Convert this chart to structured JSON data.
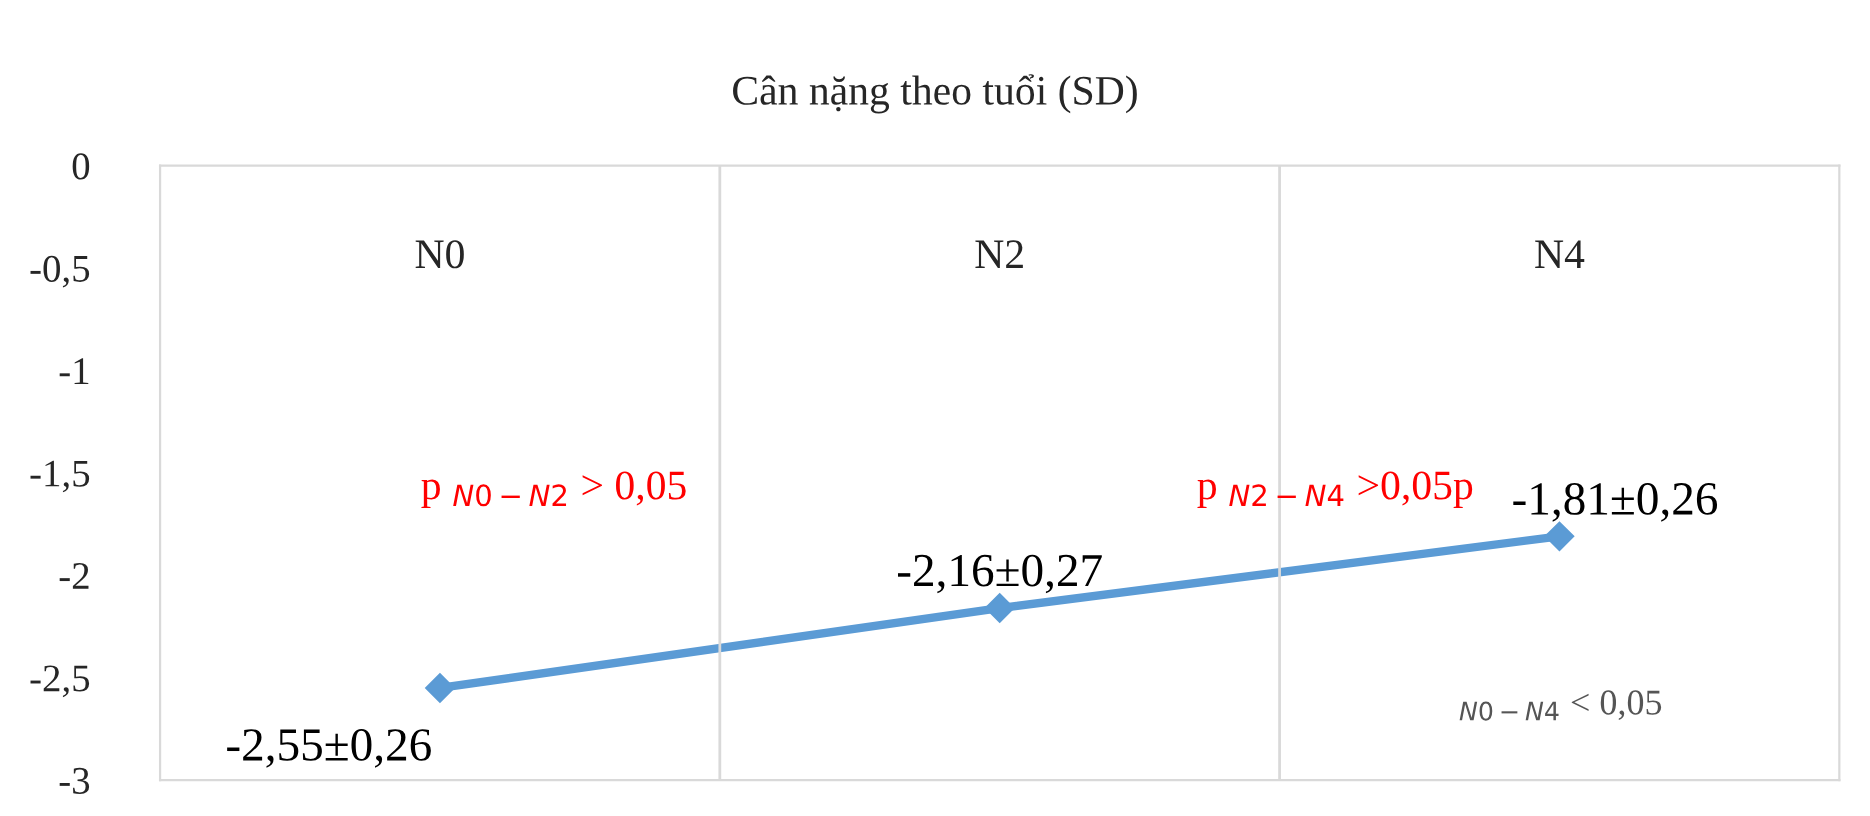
{
  "chart_data": {
    "type": "line",
    "title": "Cân nặng theo tuổi (SD)",
    "categories": [
      "N0",
      "N2",
      "N4"
    ],
    "series": [
      {
        "color": "#5b9bd5",
        "values": [
          -2.55,
          -2.16,
          -1.81
        ],
        "value_labels": [
          "-2,55±0,26",
          "-2,16±0,27",
          "-1,81±0,26"
        ]
      }
    ],
    "ylim": [
      -3,
      0
    ],
    "yticks": [
      {
        "value": 0,
        "label": "0"
      },
      {
        "value": -0.5,
        "label": "-0,5"
      },
      {
        "value": -1,
        "label": "-1"
      },
      {
        "value": -1.5,
        "label": "-1,5"
      },
      {
        "value": -2,
        "label": "-2"
      },
      {
        "value": -2.5,
        "label": "-2,5"
      },
      {
        "value": -3,
        "label": "-3"
      }
    ],
    "grid": "x",
    "marker": "diamond",
    "line_style": "solid",
    "legend": false,
    "annotations": [
      "p $_{N0−N2}$ > 0,05",
      "p $_{N2−N4}$ >0,05p",
      "$_{N0−N4}$ < 0,05"
    ]
  }
}
